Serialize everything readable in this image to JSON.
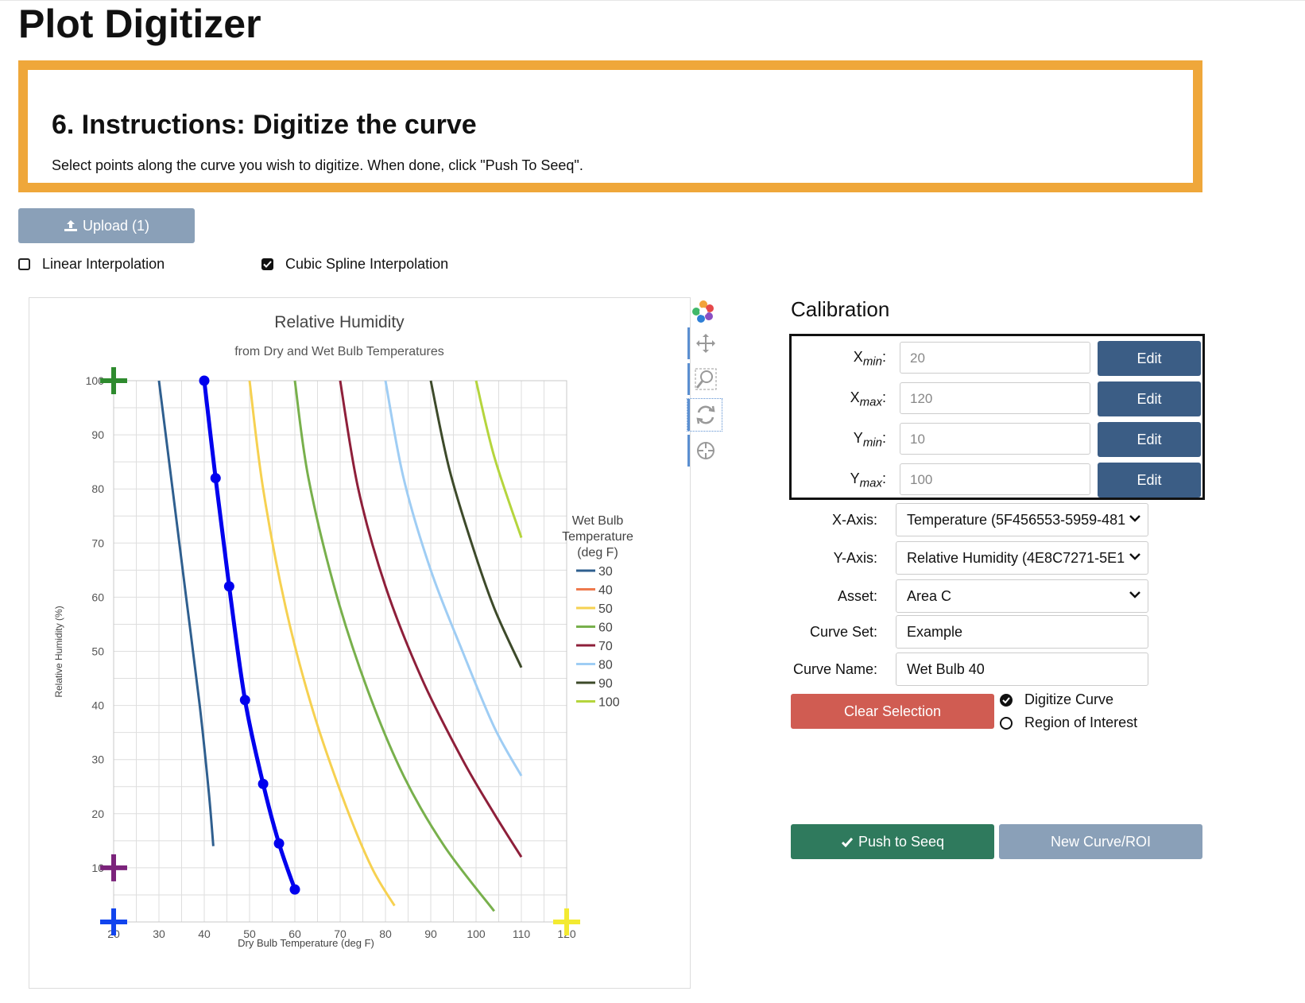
{
  "app": {
    "title": "Plot Digitizer"
  },
  "instructions": {
    "heading": "6. Instructions: Digitize the curve",
    "text": "Select points along the curve you wish to digitize. When done, click \"Push To Seeq\"."
  },
  "upload": {
    "label": "Upload (1)"
  },
  "interpolation": {
    "linear_label": "Linear Interpolation",
    "linear_checked": false,
    "spline_label": "Cubic Spline Interpolation",
    "spline_checked": true
  },
  "colors": {
    "accent_orange": "#efa73a",
    "edit_blue": "#3b5d85",
    "clear_red": "#d05c52",
    "push_green": "#2f7a5d",
    "upload_gray": "#8aa0b8"
  },
  "toolbar": {
    "icons": [
      "logo-icon",
      "pan-icon",
      "zoom-icon",
      "reset-icon",
      "crosshair-icon"
    ]
  },
  "calibration": {
    "heading": "Calibration",
    "edit_label": "Edit",
    "rows": [
      {
        "base": "X",
        "sub": "min",
        "value": "20"
      },
      {
        "base": "X",
        "sub": "max",
        "value": "120"
      },
      {
        "base": "Y",
        "sub": "min",
        "value": "10"
      },
      {
        "base": "Y",
        "sub": "max",
        "value": "100"
      }
    ]
  },
  "fields": {
    "x_axis": {
      "label": "X-Axis:",
      "value": "Temperature (5F456553-5959-481"
    },
    "y_axis": {
      "label": "Y-Axis:",
      "value": "Relative Humidity (4E8C7271-5E1"
    },
    "asset": {
      "label": "Asset:",
      "value": "Area C"
    },
    "curve_set": {
      "label": "Curve Set:",
      "value": "Example"
    },
    "curve_name": {
      "label": "Curve Name:",
      "value": "Wet Bulb 40"
    }
  },
  "actions": {
    "clear_label": "Clear Selection",
    "digitize_label": "Digitize Curve",
    "roi_label": "Region of Interest",
    "mode": "Digitize Curve",
    "push_label": "Push to Seeq",
    "new_label": "New Curve/ROI"
  },
  "chart_data": {
    "type": "line",
    "title": "Relative Humidity",
    "subtitle": "from Dry and Wet Bulb Temperatures",
    "xlabel": "Dry Bulb Temperature (deg F)",
    "ylabel": "Relative Humidity (%)",
    "xlim": [
      20,
      120
    ],
    "ylim": [
      0,
      100
    ],
    "xticks": [
      20,
      30,
      40,
      50,
      60,
      70,
      80,
      90,
      100,
      110,
      120
    ],
    "yticks": [
      10,
      20,
      30,
      40,
      50,
      60,
      70,
      80,
      90,
      100
    ],
    "grid": true,
    "legend_title": [
      "Wet Bulb",
      "Temperature",
      "(deg F)"
    ],
    "legend_position": "right",
    "series": [
      {
        "name": "30",
        "color": "#2f5f8f",
        "points": [
          [
            30,
            100
          ],
          [
            33,
            80
          ],
          [
            36,
            60
          ],
          [
            39,
            40
          ],
          [
            41,
            24
          ],
          [
            42,
            14
          ]
        ]
      },
      {
        "name": "40",
        "color": "#ee7a4d",
        "points": [
          [
            40,
            100
          ],
          [
            42.5,
            82
          ],
          [
            45.5,
            62
          ],
          [
            49,
            41
          ],
          [
            53,
            26
          ],
          [
            56.5,
            15
          ],
          [
            60,
            6
          ]
        ]
      },
      {
        "name": "50",
        "color": "#f6d151",
        "points": [
          [
            50,
            100
          ],
          [
            53,
            80
          ],
          [
            58,
            58
          ],
          [
            64,
            39
          ],
          [
            71,
            22
          ],
          [
            77,
            10
          ],
          [
            82,
            3
          ]
        ]
      },
      {
        "name": "60",
        "color": "#78b04c",
        "points": [
          [
            60,
            100
          ],
          [
            63,
            82
          ],
          [
            69,
            61
          ],
          [
            76,
            43
          ],
          [
            84,
            27
          ],
          [
            93,
            14
          ],
          [
            104,
            2
          ]
        ]
      },
      {
        "name": "70",
        "color": "#8e1f3a",
        "points": [
          [
            70,
            100
          ],
          [
            74,
            80
          ],
          [
            80,
            62
          ],
          [
            88,
            45
          ],
          [
            97,
            30
          ],
          [
            104,
            20
          ],
          [
            110,
            12
          ]
        ]
      },
      {
        "name": "80",
        "color": "#9fcdf4",
        "points": [
          [
            80,
            100
          ],
          [
            84,
            82
          ],
          [
            90,
            65
          ],
          [
            97,
            50
          ],
          [
            104,
            36
          ],
          [
            110,
            27
          ]
        ]
      },
      {
        "name": "90",
        "color": "#3d4a2a",
        "points": [
          [
            90,
            100
          ],
          [
            94,
            84
          ],
          [
            99,
            70
          ],
          [
            104,
            58
          ],
          [
            110,
            47
          ]
        ]
      },
      {
        "name": "100",
        "color": "#b5d53d",
        "points": [
          [
            100,
            100
          ],
          [
            104,
            86
          ],
          [
            110,
            71
          ]
        ]
      }
    ],
    "digitized": {
      "color": "#0000ee",
      "points": [
        [
          40,
          100
        ],
        [
          42.5,
          82
        ],
        [
          45.5,
          62
        ],
        [
          49,
          41
        ],
        [
          53,
          25.5
        ],
        [
          56.5,
          14.5
        ],
        [
          60,
          6
        ]
      ]
    },
    "calibration_markers": [
      {
        "label": "Ymax",
        "color": "#2e8b2e",
        "x": 20,
        "y": 100
      },
      {
        "label": "Ymin",
        "color": "#7b237b",
        "x": 20,
        "y": 10
      },
      {
        "label": "Xmin",
        "color": "#1144ee",
        "x": 20,
        "y": 0
      },
      {
        "label": "Xmax",
        "color": "#f3ea31",
        "x": 120,
        "y": 0
      }
    ]
  }
}
